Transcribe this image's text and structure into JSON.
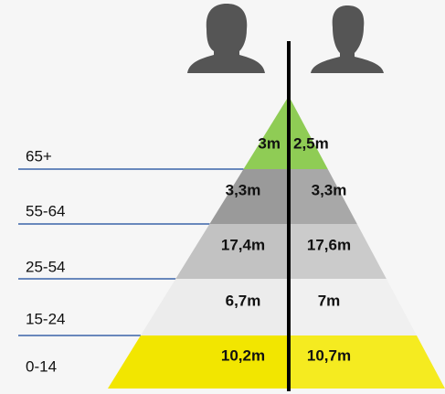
{
  "rows": [
    {
      "age": "65+",
      "female": "3m",
      "male": "2,5m"
    },
    {
      "age": "55-64",
      "female": "3,3m",
      "male": "3,3m"
    },
    {
      "age": "25-54",
      "female": "17,4m",
      "male": "17,6m"
    },
    {
      "age": "15-24",
      "female": "6,7m",
      "male": "7m"
    },
    {
      "age": "0-14",
      "female": "10,2m",
      "male": "10,7m"
    }
  ]
}
